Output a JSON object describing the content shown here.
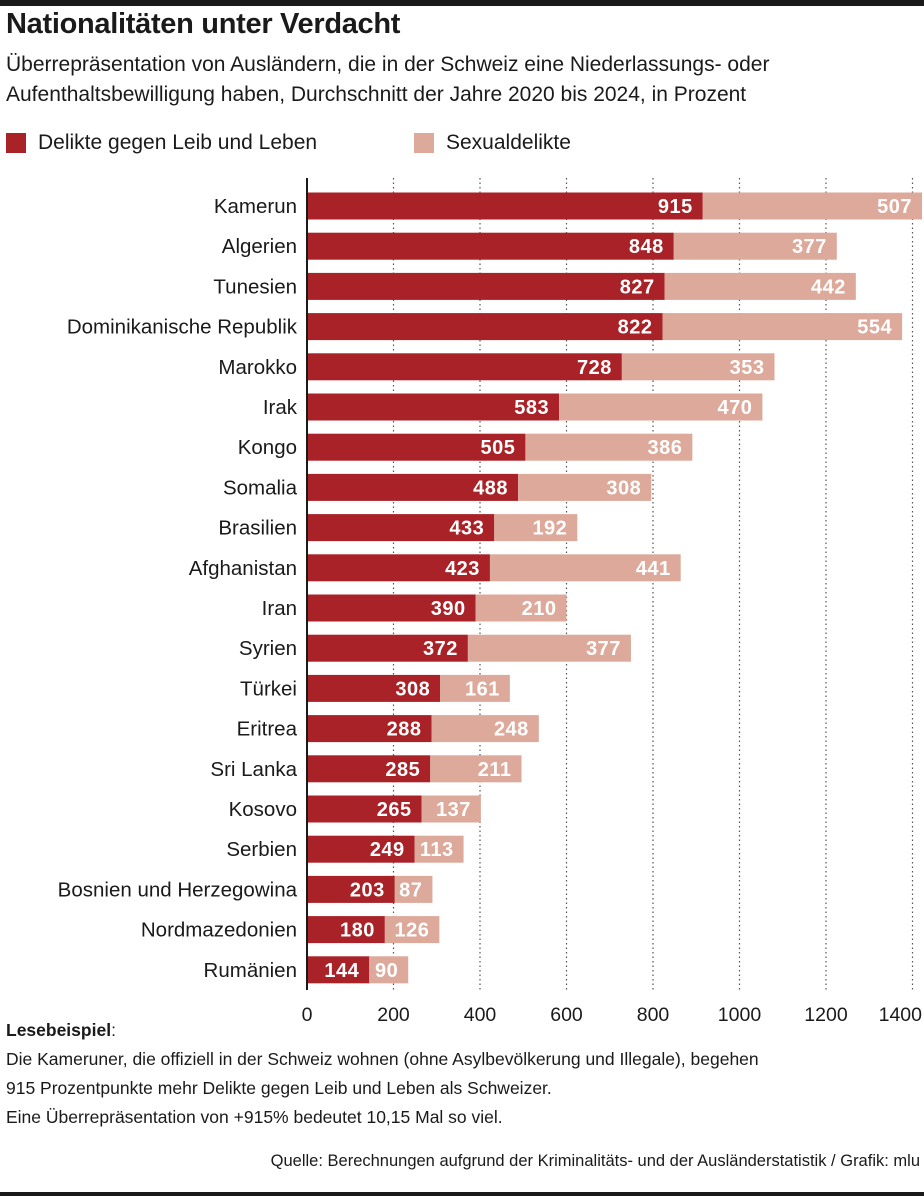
{
  "header": {
    "title": "Nationalitäten unter Verdacht",
    "subtitle": "Überrepräsentation von Ausländern, die in der Schweiz eine Niederlassungs- oder\nAufenthaltsbewilligung haben, Durchschnitt der Jahre 2020 bis 2024, in Prozent"
  },
  "colors": {
    "leib": "#a82227",
    "sexual": "#dda99b",
    "text": "#1a1a1a",
    "grid": "#555555"
  },
  "chart_data": {
    "type": "bar",
    "orientation": "horizontal",
    "stacked": true,
    "categories": [
      "Kamerun",
      "Algerien",
      "Tunesien",
      "Dominikanische Republik",
      "Marokko",
      "Irak",
      "Kongo",
      "Somalia",
      "Brasilien",
      "Afghanistan",
      "Iran",
      "Syrien",
      "Türkei",
      "Eritrea",
      "Sri Lanka",
      "Kosovo",
      "Serbien",
      "Bosnien und Herzegowina",
      "Nordmazedonien",
      "Rumänien"
    ],
    "series": [
      {
        "name": "Delikte gegen Leib und Leben",
        "color": "#a82227",
        "values": [
          915,
          848,
          827,
          822,
          728,
          583,
          505,
          488,
          433,
          423,
          390,
          372,
          308,
          288,
          285,
          265,
          249,
          203,
          180,
          144
        ]
      },
      {
        "name": "Sexualdelikte",
        "color": "#dda99b",
        "values": [
          507,
          377,
          442,
          554,
          353,
          470,
          386,
          308,
          192,
          441,
          210,
          377,
          161,
          248,
          211,
          137,
          113,
          87,
          126,
          90
        ]
      }
    ],
    "xticks": [
      0,
      200,
      400,
      600,
      800,
      1000,
      1200,
      1400
    ],
    "tick_labels": [
      "0",
      "200",
      "400",
      "600",
      "800",
      "1000",
      "1200",
      "1400"
    ],
    "xlim": [
      0,
      1400
    ],
    "grid": "vertical dotted",
    "legend": "top-left"
  },
  "note": {
    "heading": "Lesebeispiel",
    "heading_suffix": ":",
    "lines": [
      "Die Kameruner, die offiziell in der Schweiz wohnen (ohne Asylbevölkerung und Illegale), begehen",
      "915 Prozentpunkte mehr Delikte gegen Leib und Leben als Schweizer.",
      "Eine Überrepräsentation von +915% bedeutet 10,15 Mal so viel."
    ]
  },
  "source": "Quelle: Berechnungen aufgrund der Kriminalitäts- und der Ausländerstatistik / Grafik: mlu"
}
